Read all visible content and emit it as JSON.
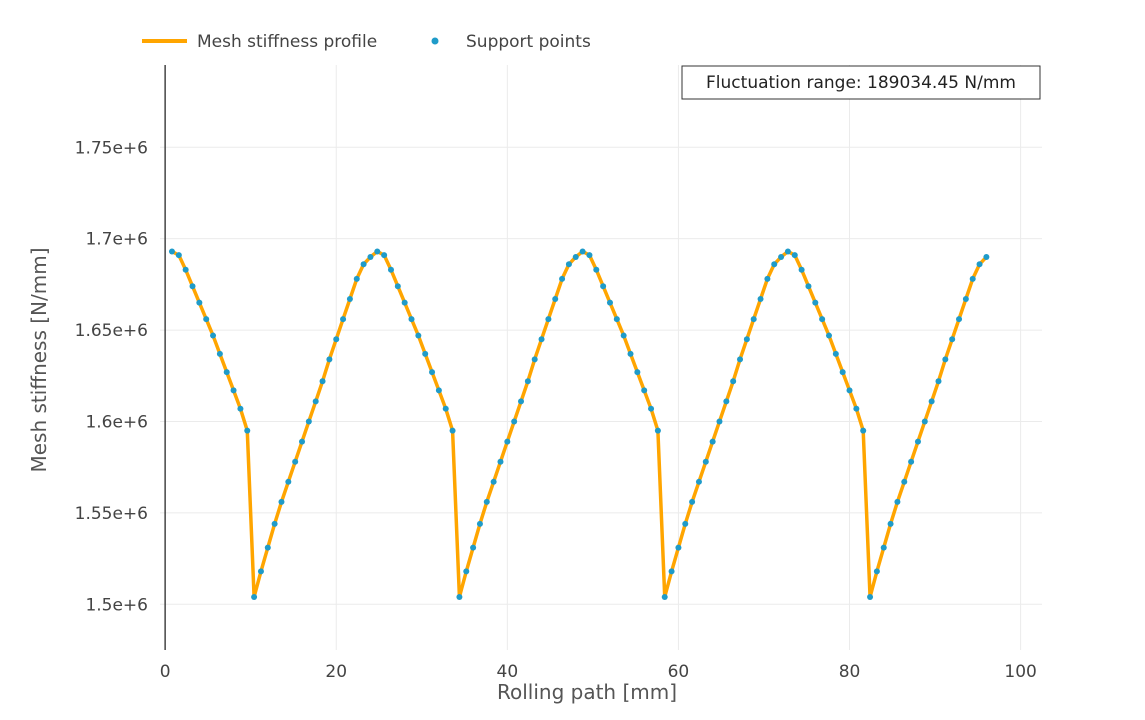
{
  "chart_data": {
    "type": "line",
    "xlabel": "Rolling path [mm]",
    "ylabel": "Mesh stiffness [N/mm]",
    "xlim": [
      -0.6,
      102.5
    ],
    "ylim": [
      1475000,
      1795000
    ],
    "x_ticks": [
      0,
      20,
      40,
      60,
      80,
      100
    ],
    "y_ticks": [
      1500000,
      1550000,
      1600000,
      1650000,
      1700000,
      1750000
    ],
    "x_tick_labels": [
      "0",
      "20",
      "40",
      "60",
      "80",
      "100"
    ],
    "y_tick_labels": [
      "1.5e+6",
      "1.55e+6",
      "1.6e+6",
      "1.65e+6",
      "1.7e+6",
      "1.75e+6"
    ],
    "grid": true,
    "legend_position": "top-left",
    "annotation": "Fluctuation range: 189034.45 N/mm",
    "series": [
      {
        "name": "Mesh stiffness profile",
        "mode": "line",
        "color": "#FFA500",
        "x": [
          0.8,
          1.6,
          2.4,
          3.2,
          4.0,
          4.8,
          5.6,
          6.4,
          7.2,
          8.0,
          8.8,
          9.6,
          10.4,
          11.2,
          12.0,
          12.8,
          13.6,
          14.4,
          15.2,
          16.0,
          16.8,
          17.6,
          18.4,
          19.2,
          20.0,
          20.8,
          21.6,
          22.4,
          23.2,
          24.0,
          24.8,
          25.6,
          26.4,
          27.2,
          28.0,
          28.8,
          29.6,
          30.4,
          31.2,
          32.0,
          32.8,
          33.6,
          34.4,
          35.2,
          36.0,
          36.8,
          37.6,
          38.4,
          39.2,
          40.0,
          40.8,
          41.6,
          42.4,
          43.2,
          44.0,
          44.8,
          45.6,
          46.4,
          47.2,
          48.0,
          48.8,
          49.6,
          50.4,
          51.2,
          52.0,
          52.8,
          53.6,
          54.4,
          55.2,
          56.0,
          56.8,
          57.6,
          58.4,
          59.2,
          60.0,
          60.8,
          61.6,
          62.4,
          63.2,
          64.0,
          64.8,
          65.6,
          66.4,
          67.2,
          68.0,
          68.8,
          69.6,
          70.4,
          71.2,
          72.0,
          72.8,
          73.6,
          74.4,
          75.2,
          76.0,
          76.8,
          77.6,
          78.4,
          79.2,
          80.0,
          80.8,
          81.6,
          82.4,
          83.2,
          84.0,
          84.8,
          85.6,
          86.4,
          87.2,
          88.0,
          88.8,
          89.6,
          90.4,
          91.2,
          92.0,
          92.8,
          93.6,
          94.4,
          95.2,
          96.0
        ],
        "y": [
          1693000,
          1691000,
          1683000,
          1674000,
          1665000,
          1656000,
          1647000,
          1637000,
          1627000,
          1617000,
          1607000,
          1595000,
          1504000,
          1518000,
          1531000,
          1544000,
          1556000,
          1567000,
          1578000,
          1589000,
          1600000,
          1611000,
          1622000,
          1634000,
          1645000,
          1656000,
          1667000,
          1678000,
          1686000,
          1690000,
          1693000,
          1691000,
          1683000,
          1674000,
          1665000,
          1656000,
          1647000,
          1637000,
          1627000,
          1617000,
          1607000,
          1595000,
          1504000,
          1518000,
          1531000,
          1544000,
          1556000,
          1567000,
          1578000,
          1589000,
          1600000,
          1611000,
          1622000,
          1634000,
          1645000,
          1656000,
          1667000,
          1678000,
          1686000,
          1690000,
          1693000,
          1691000,
          1683000,
          1674000,
          1665000,
          1656000,
          1647000,
          1637000,
          1627000,
          1617000,
          1607000,
          1595000,
          1504000,
          1518000,
          1531000,
          1544000,
          1556000,
          1567000,
          1578000,
          1589000,
          1600000,
          1611000,
          1622000,
          1634000,
          1645000,
          1656000,
          1667000,
          1678000,
          1686000,
          1690000,
          1693000,
          1691000,
          1683000,
          1674000,
          1665000,
          1656000,
          1647000,
          1637000,
          1627000,
          1617000,
          1607000,
          1595000,
          1504000,
          1518000,
          1531000,
          1544000,
          1556000,
          1567000,
          1578000,
          1589000,
          1600000,
          1611000,
          1622000,
          1634000,
          1645000,
          1656000,
          1667000,
          1678000,
          1686000,
          1690000
        ]
      },
      {
        "name": "Support points",
        "mode": "markers",
        "color": "#1F9BC9",
        "x": [
          0.8,
          1.6,
          2.4,
          3.2,
          4.0,
          4.8,
          5.6,
          6.4,
          7.2,
          8.0,
          8.8,
          9.6,
          10.4,
          11.2,
          12.0,
          12.8,
          13.6,
          14.4,
          15.2,
          16.0,
          16.8,
          17.6,
          18.4,
          19.2,
          20.0,
          20.8,
          21.6,
          22.4,
          23.2,
          24.0,
          24.8,
          25.6,
          26.4,
          27.2,
          28.0,
          28.8,
          29.6,
          30.4,
          31.2,
          32.0,
          32.8,
          33.6,
          34.4,
          35.2,
          36.0,
          36.8,
          37.6,
          38.4,
          39.2,
          40.0,
          40.8,
          41.6,
          42.4,
          43.2,
          44.0,
          44.8,
          45.6,
          46.4,
          47.2,
          48.0,
          48.8,
          49.6,
          50.4,
          51.2,
          52.0,
          52.8,
          53.6,
          54.4,
          55.2,
          56.0,
          56.8,
          57.6,
          58.4,
          59.2,
          60.0,
          60.8,
          61.6,
          62.4,
          63.2,
          64.0,
          64.8,
          65.6,
          66.4,
          67.2,
          68.0,
          68.8,
          69.6,
          70.4,
          71.2,
          72.0,
          72.8,
          73.6,
          74.4,
          75.2,
          76.0,
          76.8,
          77.6,
          78.4,
          79.2,
          80.0,
          80.8,
          81.6,
          82.4,
          83.2,
          84.0,
          84.8,
          85.6,
          86.4,
          87.2,
          88.0,
          88.8,
          89.6,
          90.4,
          91.2,
          92.0,
          92.8,
          93.6,
          94.4,
          95.2,
          96.0
        ],
        "y": [
          1693000,
          1691000,
          1683000,
          1674000,
          1665000,
          1656000,
          1647000,
          1637000,
          1627000,
          1617000,
          1607000,
          1595000,
          1504000,
          1518000,
          1531000,
          1544000,
          1556000,
          1567000,
          1578000,
          1589000,
          1600000,
          1611000,
          1622000,
          1634000,
          1645000,
          1656000,
          1667000,
          1678000,
          1686000,
          1690000,
          1693000,
          1691000,
          1683000,
          1674000,
          1665000,
          1656000,
          1647000,
          1637000,
          1627000,
          1617000,
          1607000,
          1595000,
          1504000,
          1518000,
          1531000,
          1544000,
          1556000,
          1567000,
          1578000,
          1589000,
          1600000,
          1611000,
          1622000,
          1634000,
          1645000,
          1656000,
          1667000,
          1678000,
          1686000,
          1690000,
          1693000,
          1691000,
          1683000,
          1674000,
          1665000,
          1656000,
          1647000,
          1637000,
          1627000,
          1617000,
          1607000,
          1595000,
          1504000,
          1518000,
          1531000,
          1544000,
          1556000,
          1567000,
          1578000,
          1589000,
          1600000,
          1611000,
          1622000,
          1634000,
          1645000,
          1656000,
          1667000,
          1678000,
          1686000,
          1690000,
          1693000,
          1691000,
          1683000,
          1674000,
          1665000,
          1656000,
          1647000,
          1637000,
          1627000,
          1617000,
          1607000,
          1595000,
          1504000,
          1518000,
          1531000,
          1544000,
          1556000,
          1567000,
          1578000,
          1589000,
          1600000,
          1611000,
          1622000,
          1634000,
          1645000,
          1656000,
          1667000,
          1678000,
          1686000,
          1690000
        ]
      }
    ]
  }
}
